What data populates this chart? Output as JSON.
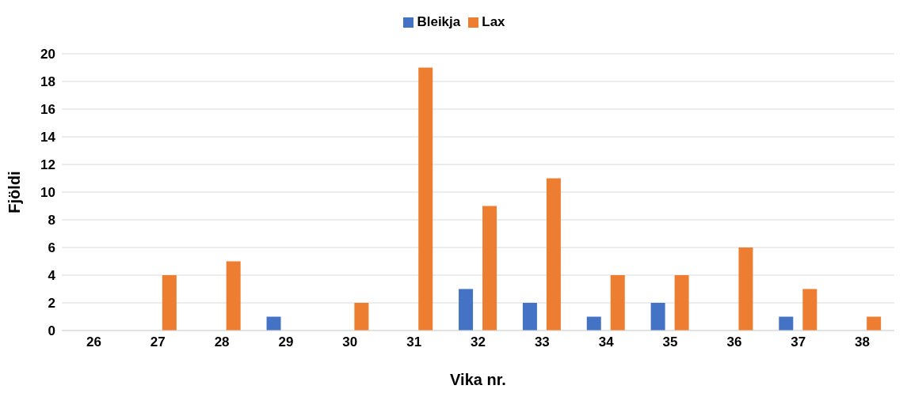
{
  "chart_data": {
    "type": "bar",
    "xlabel": "Vika nr.",
    "ylabel": "Fjöldi",
    "categories": [
      "26",
      "27",
      "28",
      "29",
      "30",
      "31",
      "32",
      "33",
      "34",
      "35",
      "36",
      "37",
      "38"
    ],
    "series": [
      {
        "name": "Bleikja",
        "color": "#4472c4",
        "values": [
          0,
          0,
          0,
          1,
          0,
          0,
          3,
          2,
          1,
          2,
          0,
          1,
          0
        ]
      },
      {
        "name": "Lax",
        "color": "#ed7d31",
        "values": [
          0,
          4,
          5,
          0,
          2,
          19,
          9,
          11,
          4,
          4,
          6,
          3,
          1
        ]
      }
    ],
    "ylim": [
      0,
      20
    ],
    "yticks": [
      0,
      2,
      4,
      6,
      8,
      10,
      12,
      14,
      16,
      18,
      20
    ],
    "grid": "y",
    "legend": "top"
  }
}
